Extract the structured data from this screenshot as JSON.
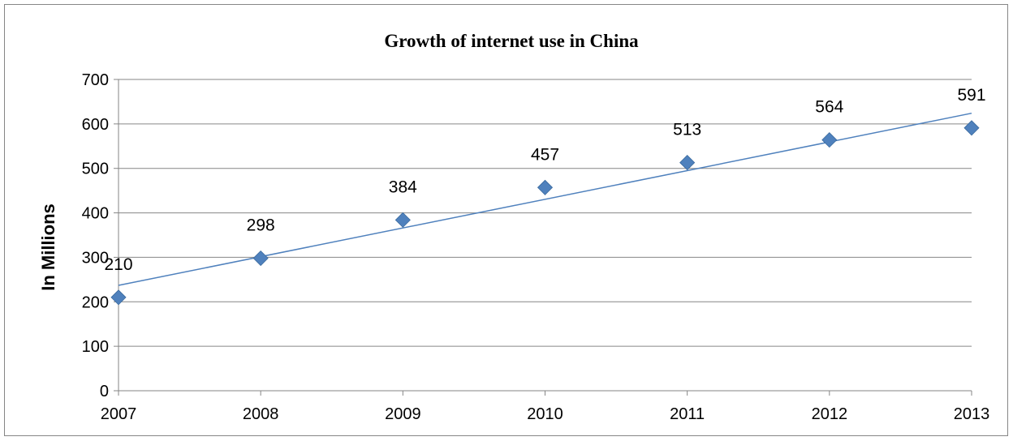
{
  "chart_data": {
    "type": "scatter",
    "title": "Growth of internet use in China",
    "xlabel": "",
    "ylabel": "In Millions",
    "x": [
      "2007",
      "2008",
      "2009",
      "2010",
      "2011",
      "2012",
      "2013"
    ],
    "series": [
      {
        "values": [
          210,
          298,
          384,
          457,
          513,
          564,
          591
        ]
      }
    ],
    "data_labels": [
      "210",
      "298",
      "384",
      "457",
      "513",
      "564",
      "591"
    ],
    "ylim": [
      0,
      700
    ],
    "yticks": [
      "0",
      "100",
      "200",
      "300",
      "400",
      "500",
      "600",
      "700"
    ],
    "trendline": {
      "type": "linear",
      "start": 237,
      "end": 624
    },
    "grid": true,
    "legend": "none",
    "marker": "diamond",
    "colors": {
      "marker": "#4F81BD",
      "trendline": "#4F81BD",
      "gridline": "#868686"
    }
  }
}
